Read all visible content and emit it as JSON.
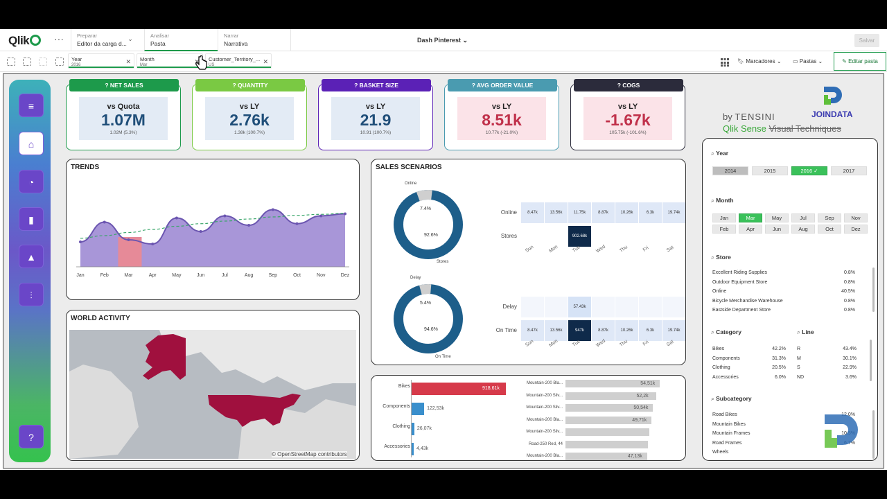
{
  "topbar": {
    "logo": "Qlik",
    "menu_dots": "···",
    "sections": [
      {
        "small": "Preparar",
        "big": "Editor da carga d..."
      },
      {
        "small": "Analisar",
        "big": "Pasta"
      },
      {
        "small": "Narrar",
        "big": "Narrativa"
      }
    ],
    "app_title": "Dash Pinterest",
    "save_label": "Salvar"
  },
  "selections": [
    {
      "label": "Year",
      "value": "2016"
    },
    {
      "label": "Month",
      "value": "Mar"
    },
    {
      "label": "Customer_Territory_...",
      "value": "US"
    }
  ],
  "toolbar": {
    "bookmarks": "Marcadores",
    "sheets": "Pastas",
    "edit": "Editar pasta"
  },
  "kpis": [
    {
      "title": "NET SALES",
      "compare": "vs Quota",
      "value": "1.07M",
      "sub": "1.02M (5.3%)",
      "color": "#1d9a4b",
      "value_color": "#1f4e79"
    },
    {
      "title": "QUANTITY",
      "compare": "vs LY",
      "value": "2.76k",
      "sub": "1.38k (100.7%)",
      "color": "#7ac943",
      "value_color": "#1f4e79"
    },
    {
      "title": "BASKET SIZE",
      "compare": "vs LY",
      "value": "21.9",
      "sub": "10.91 (100.7%)",
      "color": "#5b21b6",
      "value_color": "#1f4e79"
    },
    {
      "title": "AVG ORDER VALUE",
      "compare": "vs LY",
      "value": "8.51k",
      "sub": "10.77k (-21.0%)",
      "color": "#4a9bb0",
      "value_color": "#c0304a"
    },
    {
      "title": "COGS",
      "compare": "vs LY",
      "value": "-1.67k",
      "sub": "105.75k (-101.6%)",
      "color": "#2b2b3b",
      "value_color": "#c0304a"
    }
  ],
  "brand": {
    "by": "by",
    "tensini": "TENSINI",
    "join": "JOINDATA",
    "subtitle_a": "Qlik Sense",
    "subtitle_b": "Visual Techniques"
  },
  "trends": {
    "title": "TRENDS",
    "chart_data": {
      "type": "area",
      "categories": [
        "Jan",
        "Feb",
        "Mar",
        "Apr",
        "May",
        "Jun",
        "Jul",
        "Aug",
        "Sep",
        "Oct",
        "Nov",
        "Dez"
      ],
      "values": [
        0.48,
        0.86,
        0.52,
        0.44,
        0.94,
        0.68,
        0.98,
        0.8,
        1.1,
        0.83,
        0.98,
        1.02
      ],
      "trend": [
        0.55,
        0.6,
        0.66,
        0.72,
        0.78,
        0.83,
        0.88,
        0.92,
        0.96,
        0.99,
        1.01,
        1.03
      ],
      "highlight": "Mar",
      "colors": {
        "area": "#a896d8",
        "line": "#6b55b0",
        "highlight": "#e68a98",
        "trend": "#3aa66a"
      }
    }
  },
  "world": {
    "title": "WORLD ACTIVITY",
    "credit": "© OpenStreetMap contributors"
  },
  "scenarios": {
    "title": "SALES SCENARIOS",
    "donut1": {
      "small_label": "Online",
      "big_label": "Stores",
      "small_pct": "7.4%",
      "big_pct": "92.6%"
    },
    "donut2": {
      "small_label": "Delay",
      "big_label": "On Time",
      "small_pct": "5.4%",
      "big_pct": "94.6%"
    },
    "days": [
      "Sun",
      "Mon",
      "Tue",
      "Wed",
      "Thu",
      "Fri",
      "Sat"
    ],
    "heat1": {
      "rows": [
        "Online",
        "Stores"
      ],
      "cells": [
        [
          "8.47k",
          "13.56k",
          "11.75k",
          "8.87k",
          "10.26k",
          "6.3k",
          "19.74k"
        ],
        [
          "",
          "",
          "902.68k",
          "",
          "",
          "",
          ""
        ]
      ]
    },
    "heat2": {
      "rows": [
        "Delay",
        "On Time"
      ],
      "cells": [
        [
          "",
          "",
          "57.43k",
          "",
          "",
          "",
          ""
        ],
        [
          "8.47k",
          "13.56k",
          "947k",
          "8.87k",
          "10.26k",
          "6.3k",
          "19.74k"
        ]
      ]
    }
  },
  "category_bars": {
    "chart_data": {
      "type": "bar",
      "categories": [
        "Bikes",
        "Components",
        "Clothing",
        "Accessories"
      ],
      "values": [
        918.61,
        122.53,
        26.07,
        4.43
      ],
      "labels": [
        "918,61k",
        "122,53k",
        "26,07k",
        "4,43k"
      ],
      "colors": [
        "#d63a4a",
        "#3a8fcc",
        "#3a8fcc",
        "#3a8fcc"
      ]
    }
  },
  "product_bars": {
    "chart_data": {
      "type": "bar",
      "categories": [
        "Mountain-200 Bla...",
        "Mountain-200 Silv...",
        "Mountain-200 Silv...",
        "Mountain-200 Bla...",
        "Mountain-200 Silv...",
        "Road-250 Red, 44",
        "Mountain-200 Bla..."
      ],
      "values": [
        54.51,
        52.2,
        50.54,
        49.71,
        48.2,
        47.5,
        47.13
      ],
      "labels": [
        "54,51k",
        "52,2k",
        "50,54k",
        "49,71k",
        "",
        "",
        "47,13k"
      ]
    }
  },
  "filters": {
    "year": {
      "title": "Year",
      "items": [
        "2014",
        "2015",
        "2016",
        "2017"
      ],
      "selected": "2016",
      "alt": "2014"
    },
    "month": {
      "title": "Month",
      "items": [
        "Jan",
        "Mar",
        "May",
        "Jul",
        "Sep",
        "Nov",
        "Feb",
        "Apr",
        "Jun",
        "Aug",
        "Oct",
        "Dez"
      ],
      "selected": "Mar"
    },
    "store": {
      "title": "Store",
      "items": [
        {
          "name": "Excellent Riding Supplies",
          "pct": "0.8%"
        },
        {
          "name": "Outdoor Equipment Store",
          "pct": "0.8%"
        },
        {
          "name": "Online",
          "pct": "40.5%"
        },
        {
          "name": "Bicycle Merchandise Warehouse",
          "pct": "0.8%"
        },
        {
          "name": "Eastside Department Store",
          "pct": "0.8%"
        }
      ]
    },
    "category": {
      "title": "Category",
      "items": [
        {
          "name": "Bikes",
          "pct": "42.2%"
        },
        {
          "name": "Components",
          "pct": "31.3%"
        },
        {
          "name": "Clothing",
          "pct": "20.5%"
        },
        {
          "name": "Accessories",
          "pct": "6.0%"
        }
      ]
    },
    "line": {
      "title": "Line",
      "items": [
        {
          "name": "R",
          "pct": "43.4%"
        },
        {
          "name": "M",
          "pct": "30.1%"
        },
        {
          "name": "S",
          "pct": "22.9%"
        },
        {
          "name": "ND",
          "pct": "3.6%"
        }
      ]
    },
    "subcategory": {
      "title": "Subcategory",
      "items": [
        "Road Bikes",
        "Mountain Bikes",
        "Mountain Frames",
        "Road Frames",
        "Wheels"
      ],
      "pcts": [
        "12.0%",
        "",
        "10.5%",
        "6.7%",
        ""
      ]
    }
  }
}
